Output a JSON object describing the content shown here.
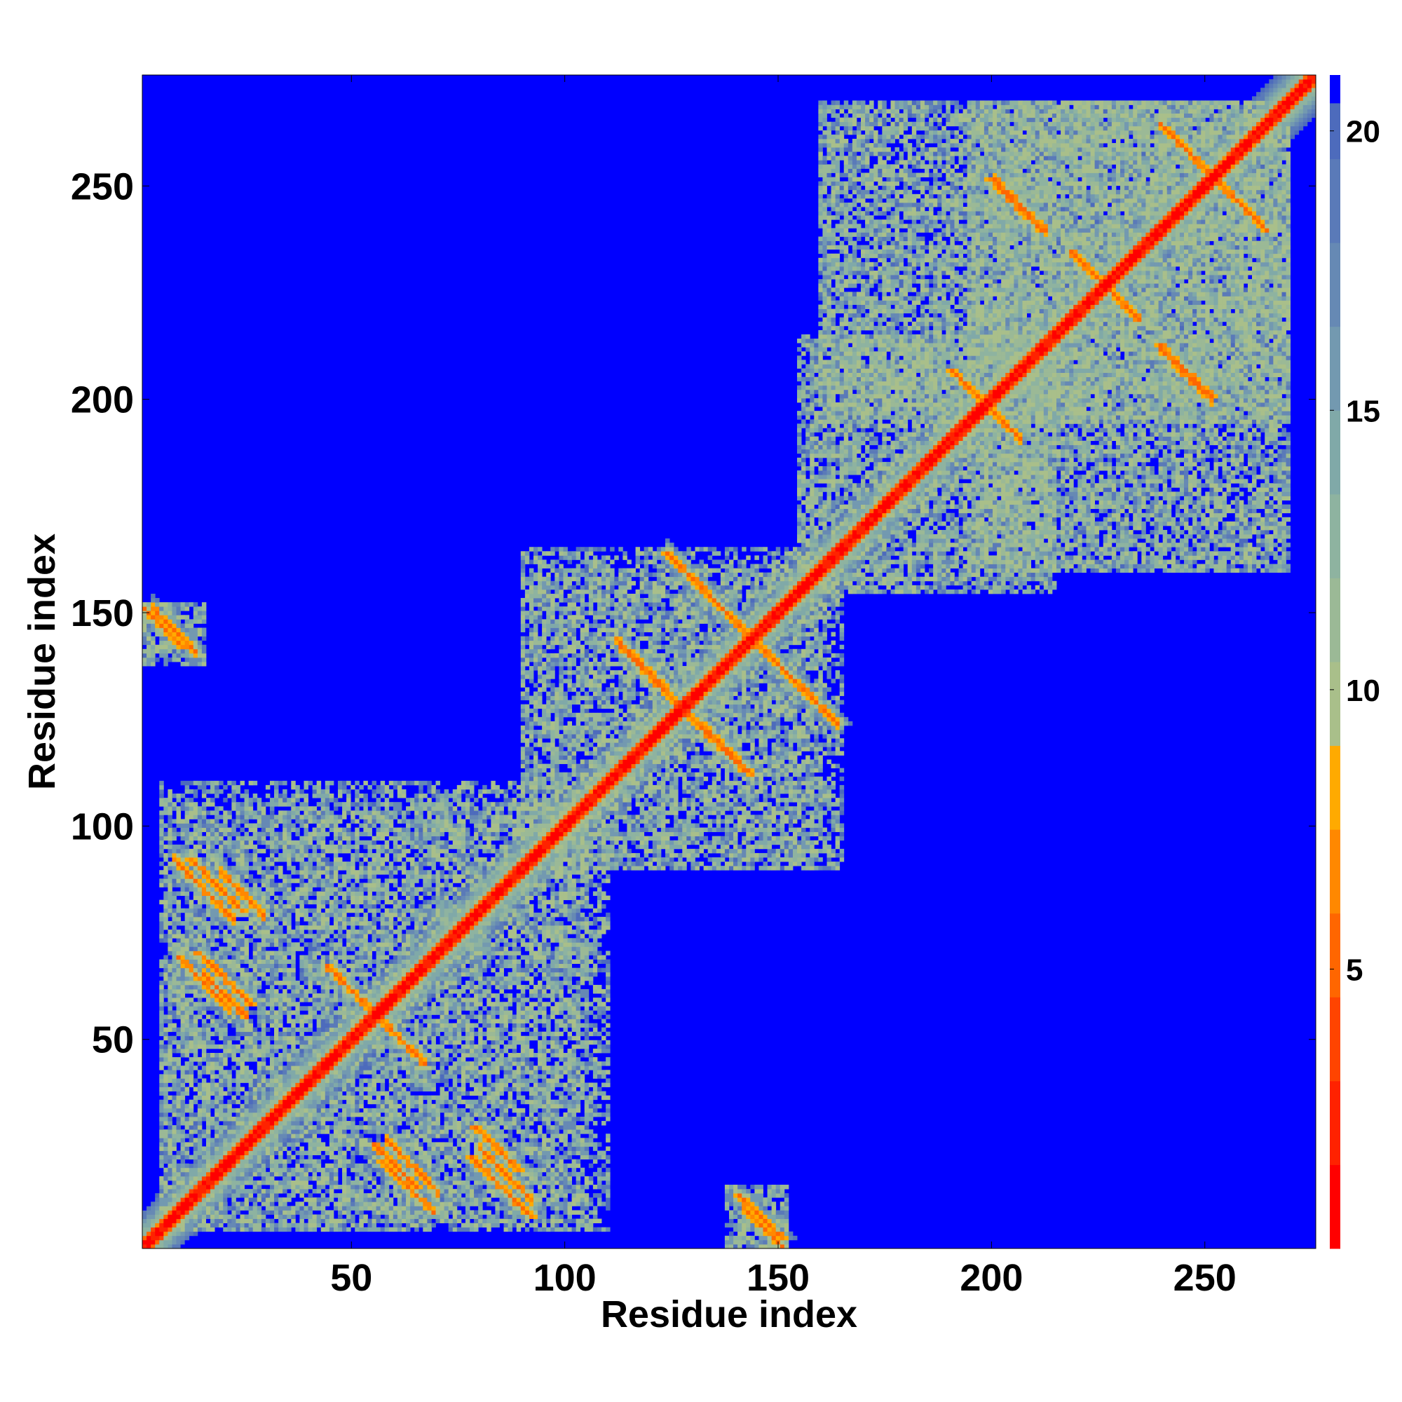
{
  "chart_data": {
    "type": "heatmap",
    "title": "",
    "xlabel": "Residue index",
    "ylabel": "Residue index",
    "xlim": [
      1,
      276
    ],
    "ylim": [
      1,
      276
    ],
    "x_ticks": [
      50,
      100,
      150,
      200,
      250
    ],
    "y_ticks": [
      50,
      100,
      150,
      200,
      250
    ],
    "x_tick_labels": [
      "50",
      "100",
      "150",
      "200",
      "250"
    ],
    "y_tick_labels": [
      "50",
      "100",
      "150",
      200,
      "250"
    ],
    "value_range": [
      0,
      21
    ],
    "colorbar": {
      "ticks": [
        5,
        10,
        15,
        20
      ],
      "tick_labels": [
        "5",
        "10",
        "15",
        "20"
      ],
      "levels": [
        {
          "upto": 1.5,
          "color": "#ff0000"
        },
        {
          "upto": 3,
          "color": "#ff2200"
        },
        {
          "upto": 4.5,
          "color": "#ff4400"
        },
        {
          "upto": 6,
          "color": "#ff6600"
        },
        {
          "upto": 7.5,
          "color": "#ff8800"
        },
        {
          "upto": 9,
          "color": "#ffaa00"
        },
        {
          "upto": 10.5,
          "color": "#a9bf8a"
        },
        {
          "upto": 12,
          "color": "#9bb996"
        },
        {
          "upto": 13.5,
          "color": "#8eb3a0"
        },
        {
          "upto": 15,
          "color": "#80a9a8"
        },
        {
          "upto": 16.5,
          "color": "#7399b0"
        },
        {
          "upto": 18,
          "color": "#6689b4"
        },
        {
          "upto": 19.5,
          "color": "#5a7ab8"
        },
        {
          "upto": 20.5,
          "color": "#4d6bbc"
        },
        {
          "upto": 21,
          "color": "#0000ff"
        }
      ]
    },
    "background_value": 21,
    "contact_features": [
      {
        "kind": "diagonal",
        "from": 1,
        "to": 276
      },
      {
        "kind": "antiparallel",
        "center": [
          15,
          85
        ],
        "length": 14
      },
      {
        "kind": "antiparallel",
        "center": [
          15,
          63
        ],
        "length": 12
      },
      {
        "kind": "antiparallel",
        "center": [
          20,
          60
        ],
        "length": 10
      },
      {
        "kind": "antiparallel",
        "center": [
          24,
          84
        ],
        "length": 10
      },
      {
        "kind": "antiparallel",
        "center": [
          64,
          20
        ],
        "length": 12
      },
      {
        "kind": "antiparallel",
        "center": [
          86,
          18
        ],
        "length": 12
      },
      {
        "kind": "antiparallel",
        "center": [
          60,
          51
        ],
        "length": 14
      },
      {
        "kind": "antiparallel",
        "center": [
          144,
          144
        ],
        "length": 40
      },
      {
        "kind": "antiparallel",
        "center": [
          120,
          135
        ],
        "length": 14
      },
      {
        "kind": "antiparallel",
        "center": [
          138,
          118
        ],
        "length": 12
      },
      {
        "kind": "antiparallel",
        "center": [
          8,
          146
        ],
        "length": 10
      },
      {
        "kind": "antiparallel",
        "center": [
          147,
          5
        ],
        "length": 10
      },
      {
        "kind": "antiparallel",
        "center": [
          252,
          253
        ],
        "length": 24
      },
      {
        "kind": "antiparallel",
        "center": [
          207,
          246
        ],
        "length": 12
      },
      {
        "kind": "antiparallel",
        "center": [
          246,
          206
        ],
        "length": 12
      },
      {
        "kind": "antiparallel",
        "center": [
          200,
          198
        ],
        "length": 14
      },
      {
        "kind": "antiparallel",
        "center": [
          228,
          226
        ],
        "length": 14
      }
    ],
    "clouds": [
      {
        "x": [
          5,
          110
        ],
        "y": [
          5,
          105
        ]
      },
      {
        "x": [
          90,
          160
        ],
        "y": [
          90,
          165
        ]
      },
      {
        "x": [
          155,
          215
        ],
        "y": [
          155,
          215
        ]
      },
      {
        "x": [
          160,
          270
        ],
        "y": [
          195,
          270
        ]
      },
      {
        "x": [
          195,
          270
        ],
        "y": [
          160,
          270
        ]
      },
      {
        "x": [
          1,
          15
        ],
        "y": [
          138,
          152
        ]
      },
      {
        "x": [
          138,
          152
        ],
        "y": [
          1,
          15
        ]
      }
    ]
  }
}
